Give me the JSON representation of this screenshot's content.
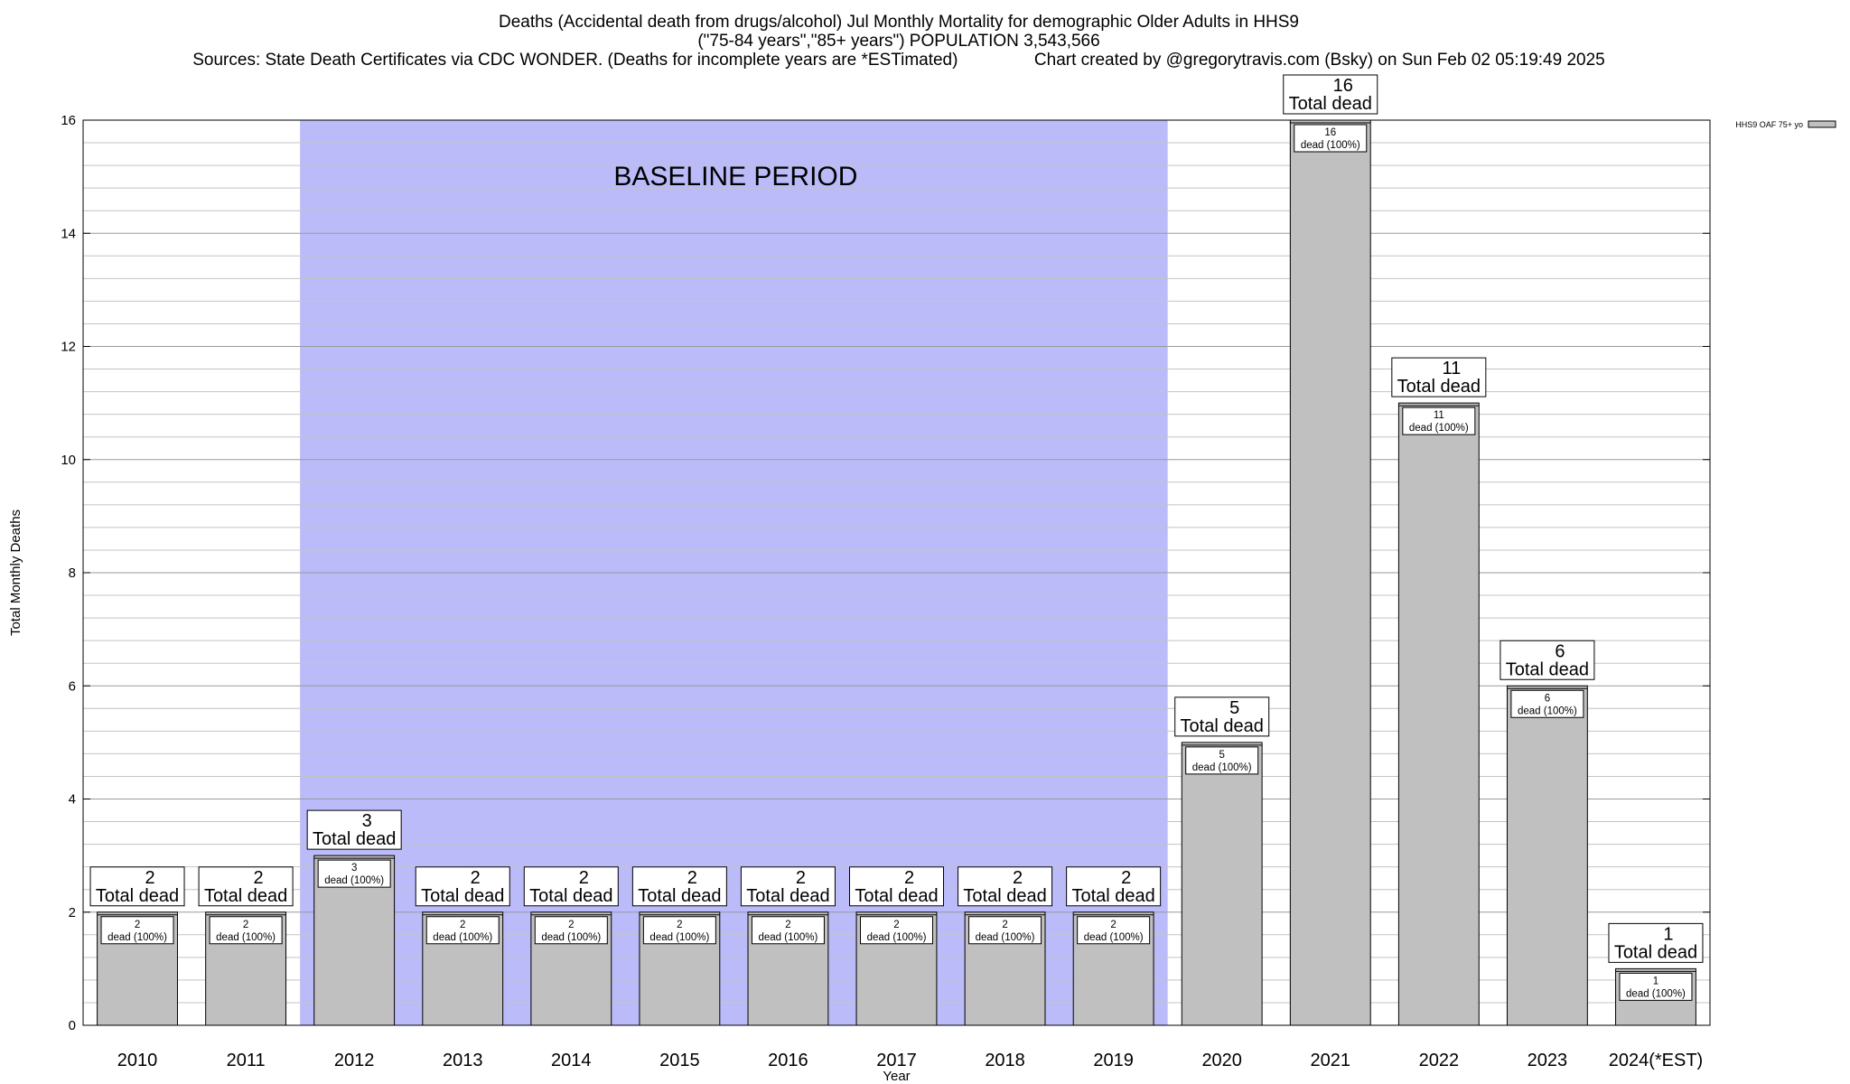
{
  "title": {
    "line1": "Deaths (Accidental death from drugs/alcohol) Jul Monthly Mortality for demographic Older Adults in HHS9",
    "line2": "(\"75-84 years\",\"85+ years\") POPULATION 3,543,566",
    "line3": "Sources: State Death Certificates via CDC WONDER. (Deaths for incomplete years are *ESTimated)                Chart created by @gregorytravis.com (Bsky) on Sun Feb 02 05:19:49 2025"
  },
  "chart_data": {
    "type": "bar",
    "title": "Deaths (Accidental death from drugs/alcohol) Jul Monthly Mortality for demographic Older Adults in HHS9",
    "xlabel": "Year",
    "ylabel": "Total Monthly Deaths",
    "ylim": [
      0,
      16
    ],
    "yticks": [
      0,
      2,
      4,
      6,
      8,
      10,
      12,
      14,
      16
    ],
    "grid": true,
    "legend": {
      "placement": "top-right",
      "entries": [
        "HHS9 OAF 75+ yo"
      ]
    },
    "categories": [
      "2010",
      "2011",
      "2012",
      "2013",
      "2014",
      "2015",
      "2016",
      "2017",
      "2018",
      "2019",
      "2020",
      "2021",
      "2022",
      "2023",
      "2024(*EST)"
    ],
    "series": [
      {
        "name": "HHS9 OAF 75+ yo",
        "values": [
          2,
          2,
          3,
          2,
          2,
          2,
          2,
          2,
          2,
          2,
          5,
          16,
          11,
          6,
          1
        ]
      }
    ],
    "total_label": "Total dead",
    "inner_label": "dead (100%)",
    "baseline": {
      "label": "BASELINE PERIOD",
      "from": "2012",
      "to": "2019"
    },
    "colors": {
      "bar": "#c0c0c0",
      "baseline": "#bbbbfa",
      "grid": "#a0a0a0"
    }
  }
}
